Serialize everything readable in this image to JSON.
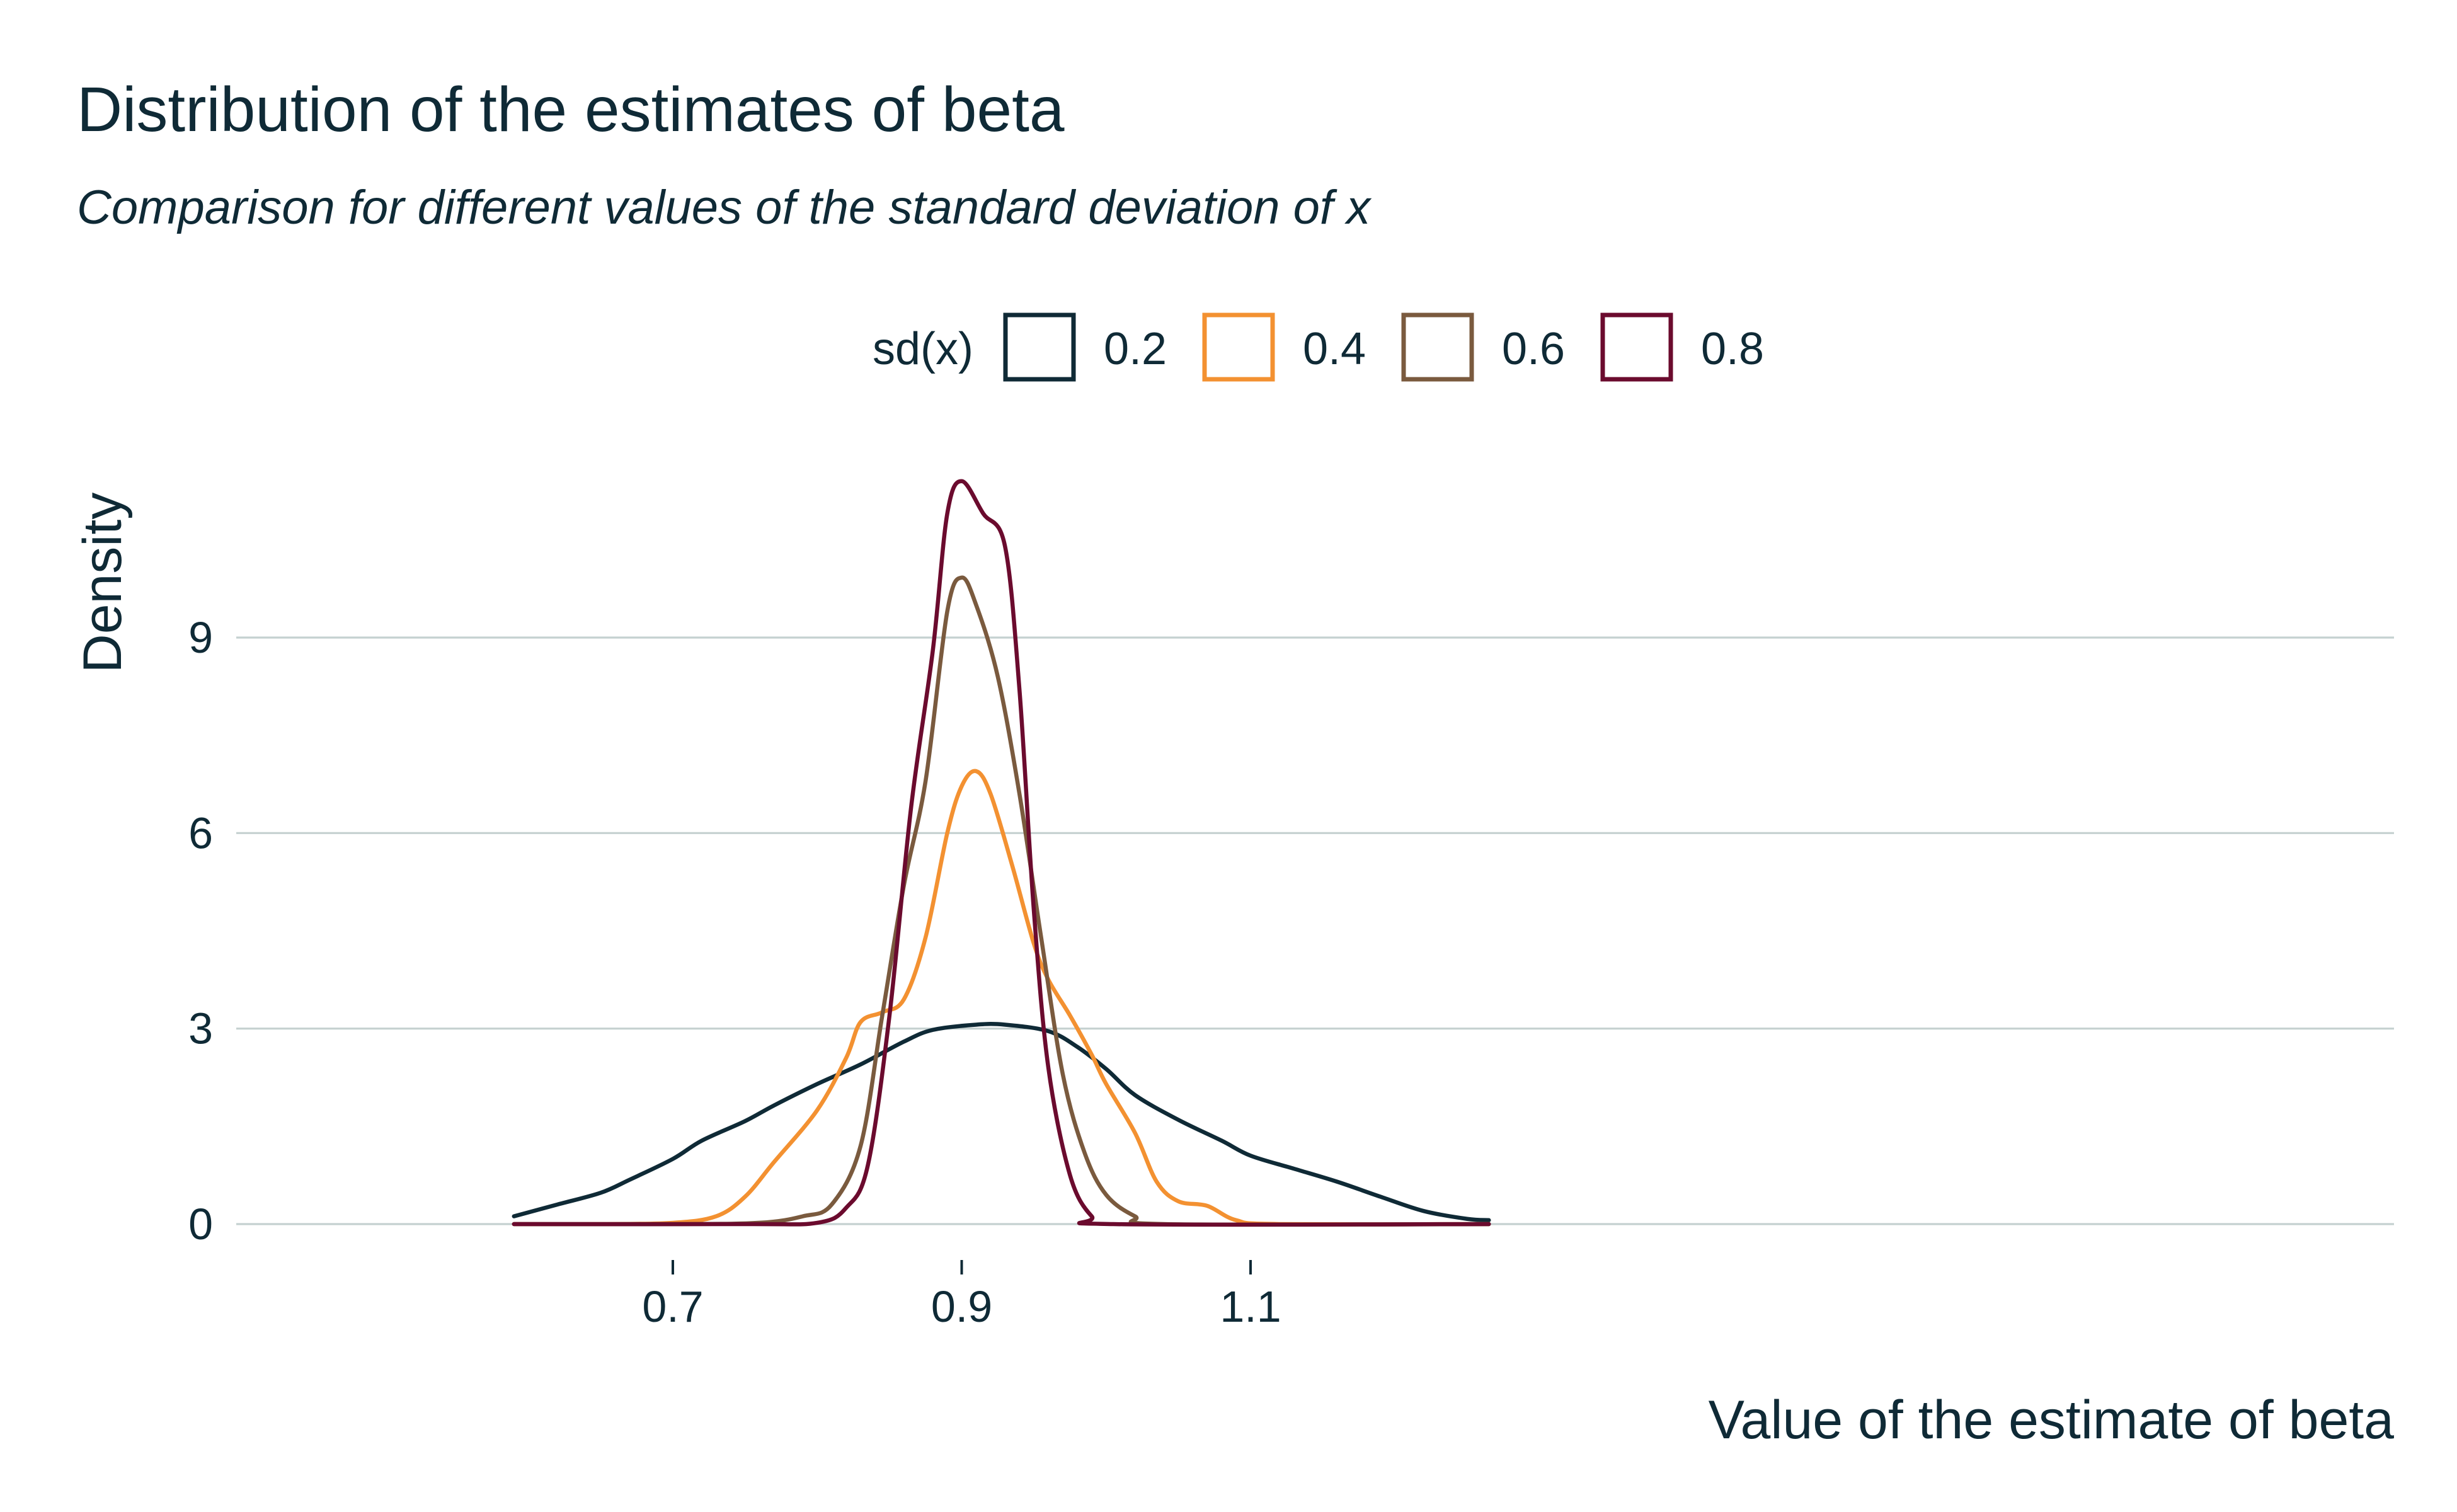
{
  "chart_data": {
    "type": "line",
    "title": "Distribution of the estimates of beta",
    "subtitle": "Comparison for different values of the standard deviation of x",
    "xlabel": "Value of the estimate of beta",
    "ylabel": "Density",
    "xlim": [
      0.58,
      1.26
    ],
    "ylim": [
      0,
      11.5
    ],
    "x_ticks": [
      0.7,
      0.9,
      1.1
    ],
    "x_tick_labels": [
      "0.7",
      "0.9",
      "1.1"
    ],
    "y_ticks": [
      0,
      3,
      6,
      9
    ],
    "y_tick_labels": [
      "0",
      "3",
      "6",
      "9"
    ],
    "grid": "horizontal",
    "legend": {
      "title": "sd(x)",
      "placement": "top-center"
    },
    "series": [
      {
        "name": "0.2",
        "color": "#0f2a36",
        "points": [
          [
            0.59,
            0.12
          ],
          [
            0.62,
            0.3
          ],
          [
            0.65,
            0.48
          ],
          [
            0.67,
            0.68
          ],
          [
            0.7,
            1.0
          ],
          [
            0.72,
            1.28
          ],
          [
            0.75,
            1.58
          ],
          [
            0.77,
            1.82
          ],
          [
            0.8,
            2.15
          ],
          [
            0.83,
            2.45
          ],
          [
            0.86,
            2.8
          ],
          [
            0.88,
            2.98
          ],
          [
            0.91,
            3.06
          ],
          [
            0.93,
            3.06
          ],
          [
            0.96,
            2.96
          ],
          [
            0.98,
            2.72
          ],
          [
            1.0,
            2.38
          ],
          [
            1.02,
            1.98
          ],
          [
            1.05,
            1.6
          ],
          [
            1.08,
            1.28
          ],
          [
            1.1,
            1.05
          ],
          [
            1.13,
            0.85
          ],
          [
            1.16,
            0.65
          ],
          [
            1.19,
            0.42
          ],
          [
            1.22,
            0.2
          ],
          [
            1.25,
            0.08
          ],
          [
            1.265,
            0.06
          ]
        ]
      },
      {
        "name": "0.4",
        "color": "#f39131",
        "points": [
          [
            0.59,
            0.0
          ],
          [
            0.65,
            0.0
          ],
          [
            0.7,
            0.02
          ],
          [
            0.73,
            0.12
          ],
          [
            0.75,
            0.42
          ],
          [
            0.77,
            0.95
          ],
          [
            0.8,
            1.75
          ],
          [
            0.82,
            2.55
          ],
          [
            0.83,
            3.1
          ],
          [
            0.845,
            3.25
          ],
          [
            0.86,
            3.45
          ],
          [
            0.875,
            4.4
          ],
          [
            0.89,
            6.0
          ],
          [
            0.9,
            6.72
          ],
          [
            0.91,
            6.95
          ],
          [
            0.92,
            6.6
          ],
          [
            0.935,
            5.5
          ],
          [
            0.95,
            4.3
          ],
          [
            0.96,
            3.75
          ],
          [
            0.975,
            3.2
          ],
          [
            0.99,
            2.6
          ],
          [
            1.0,
            2.15
          ],
          [
            1.02,
            1.4
          ],
          [
            1.035,
            0.65
          ],
          [
            1.05,
            0.35
          ],
          [
            1.07,
            0.28
          ],
          [
            1.09,
            0.06
          ],
          [
            1.12,
            0.0
          ],
          [
            1.265,
            0.0
          ]
        ]
      },
      {
        "name": "0.6",
        "color": "#7a5a3e",
        "points": [
          [
            0.59,
            0.0
          ],
          [
            0.7,
            0.0
          ],
          [
            0.76,
            0.02
          ],
          [
            0.79,
            0.12
          ],
          [
            0.81,
            0.3
          ],
          [
            0.83,
            1.2
          ],
          [
            0.845,
            3.2
          ],
          [
            0.86,
            5.2
          ],
          [
            0.875,
            6.8
          ],
          [
            0.89,
            9.4
          ],
          [
            0.9,
            9.92
          ],
          [
            0.91,
            9.5
          ],
          [
            0.925,
            8.4
          ],
          [
            0.94,
            6.6
          ],
          [
            0.955,
            4.4
          ],
          [
            0.97,
            2.3
          ],
          [
            0.985,
            1.1
          ],
          [
            1.0,
            0.45
          ],
          [
            1.02,
            0.12
          ],
          [
            1.04,
            0.0
          ],
          [
            1.265,
            0.0
          ]
        ]
      },
      {
        "name": "0.8",
        "color": "#6b0b2e",
        "points": [
          [
            0.59,
            0.0
          ],
          [
            0.75,
            0.0
          ],
          [
            0.8,
            0.02
          ],
          [
            0.82,
            0.25
          ],
          [
            0.835,
            0.9
          ],
          [
            0.85,
            3.2
          ],
          [
            0.865,
            6.4
          ],
          [
            0.88,
            8.8
          ],
          [
            0.89,
            10.9
          ],
          [
            0.9,
            11.4
          ],
          [
            0.915,
            10.9
          ],
          [
            0.93,
            10.4
          ],
          [
            0.94,
            8.2
          ],
          [
            0.95,
            4.8
          ],
          [
            0.96,
            2.4
          ],
          [
            0.975,
            0.75
          ],
          [
            0.99,
            0.12
          ],
          [
            1.005,
            0.0
          ],
          [
            1.265,
            0.0
          ]
        ]
      }
    ]
  }
}
